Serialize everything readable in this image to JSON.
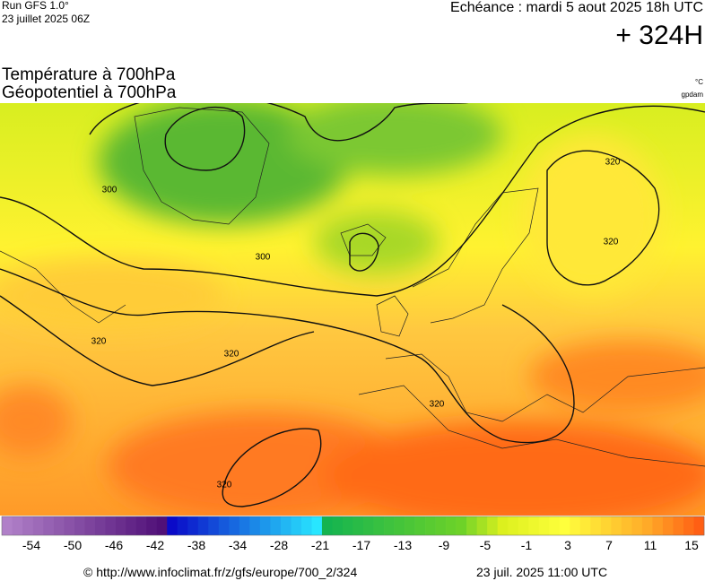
{
  "header": {
    "run": "Run GFS 1.0°",
    "run_date": "23 juillet 2025 06Z",
    "valid": "Echéance : mardi 5 aout 2025 18h UTC",
    "lead": "+ 324H"
  },
  "titles": {
    "line1": "Température à 700hPa",
    "line2": "Géopotentiel à 700hPa",
    "unit1": "°C",
    "unit2": "gpdam"
  },
  "contour_labels": [
    300,
    300,
    320,
    320,
    320,
    320,
    320,
    320
  ],
  "colorbar": {
    "labels": [
      -54,
      -50,
      -46,
      -42,
      -38,
      -34,
      -28,
      -21,
      -17,
      -13,
      -9,
      -5,
      -1,
      3,
      7,
      11,
      15
    ]
  },
  "footer": {
    "source": "© http://www.infoclimat.fr/z/gfs/europe/700_2/324",
    "date": "23 juil. 2025 11:00 UTC"
  }
}
